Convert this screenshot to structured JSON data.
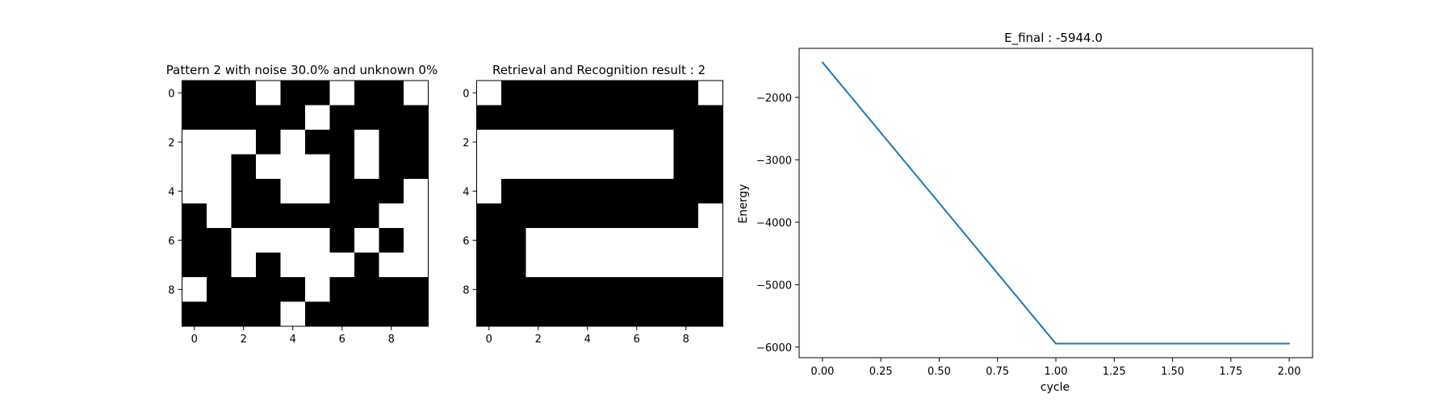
{
  "chart_data": [
    {
      "type": "heatmap",
      "title": "Pattern 2 with noise 30.0% and unknown 0%",
      "colormap": {
        "0": "#ffffff",
        "1": "#000000"
      },
      "xticks": [
        0,
        2,
        4,
        6,
        8
      ],
      "yticks": [
        0,
        2,
        4,
        6,
        8
      ],
      "grid": [
        [
          1,
          1,
          1,
          0,
          1,
          1,
          0,
          1,
          1,
          0
        ],
        [
          1,
          1,
          1,
          1,
          1,
          0,
          1,
          1,
          1,
          1
        ],
        [
          0,
          0,
          0,
          1,
          0,
          1,
          1,
          0,
          1,
          1
        ],
        [
          0,
          0,
          1,
          0,
          0,
          0,
          1,
          0,
          1,
          1
        ],
        [
          0,
          0,
          1,
          1,
          0,
          0,
          1,
          1,
          1,
          0
        ],
        [
          1,
          0,
          1,
          1,
          1,
          1,
          1,
          1,
          0,
          0
        ],
        [
          1,
          1,
          0,
          0,
          0,
          0,
          1,
          0,
          1,
          0
        ],
        [
          1,
          1,
          0,
          1,
          0,
          0,
          0,
          1,
          0,
          0
        ],
        [
          0,
          1,
          1,
          1,
          1,
          0,
          1,
          1,
          1,
          1
        ],
        [
          1,
          1,
          1,
          1,
          0,
          1,
          1,
          1,
          1,
          1
        ]
      ]
    },
    {
      "type": "heatmap",
      "title": "Retrieval and Recognition result : 2",
      "colormap": {
        "0": "#ffffff",
        "1": "#000000"
      },
      "xticks": [
        0,
        2,
        4,
        6,
        8
      ],
      "yticks": [
        0,
        2,
        4,
        6,
        8
      ],
      "grid": [
        [
          0,
          1,
          1,
          1,
          1,
          1,
          1,
          1,
          1,
          0
        ],
        [
          1,
          1,
          1,
          1,
          1,
          1,
          1,
          1,
          1,
          1
        ],
        [
          0,
          0,
          0,
          0,
          0,
          0,
          0,
          0,
          1,
          1
        ],
        [
          0,
          0,
          0,
          0,
          0,
          0,
          0,
          0,
          1,
          1
        ],
        [
          0,
          1,
          1,
          1,
          1,
          1,
          1,
          1,
          1,
          1
        ],
        [
          1,
          1,
          1,
          1,
          1,
          1,
          1,
          1,
          1,
          0
        ],
        [
          1,
          1,
          0,
          0,
          0,
          0,
          0,
          0,
          0,
          0
        ],
        [
          1,
          1,
          0,
          0,
          0,
          0,
          0,
          0,
          0,
          0
        ],
        [
          1,
          1,
          1,
          1,
          1,
          1,
          1,
          1,
          1,
          1
        ],
        [
          1,
          1,
          1,
          1,
          1,
          1,
          1,
          1,
          1,
          1
        ]
      ]
    },
    {
      "type": "line",
      "title": "E_final : -5944.0",
      "xlabel": "cycle",
      "ylabel": "Energy",
      "line_color": "#1f77b4",
      "x": [
        0,
        1,
        2
      ],
      "y": [
        -1440,
        -5944,
        -5944
      ],
      "xlim": [
        -0.1,
        2.1
      ],
      "ylim": [
        -6169,
        -1215
      ],
      "xticks": [
        0.0,
        0.25,
        0.5,
        0.75,
        1.0,
        1.25,
        1.5,
        1.75,
        2.0
      ],
      "xtick_labels": [
        "0.00",
        "0.25",
        "0.50",
        "0.75",
        "1.00",
        "1.25",
        "1.50",
        "1.75",
        "2.00"
      ],
      "yticks": [
        -2000,
        -3000,
        -4000,
        -5000,
        -6000
      ],
      "ytick_labels": [
        "−2000",
        "−3000",
        "−4000",
        "−5000",
        "−6000"
      ],
      "grid": false
    }
  ]
}
